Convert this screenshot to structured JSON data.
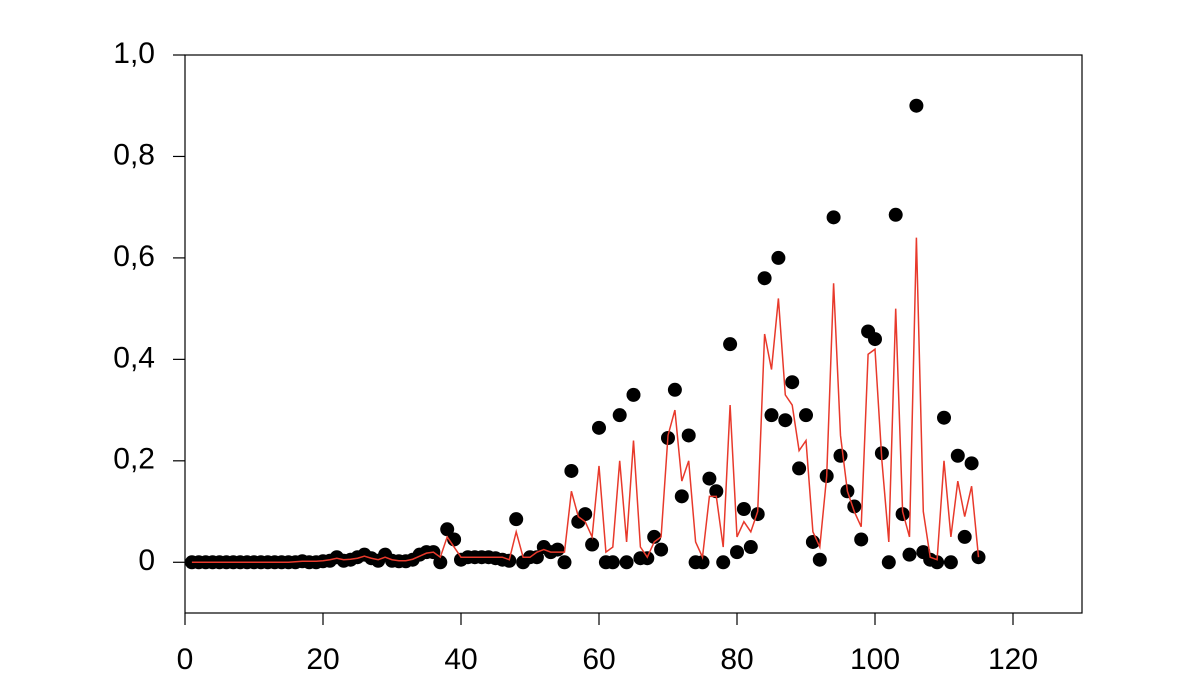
{
  "chart_data": {
    "type": "scatter",
    "x": [
      1,
      2,
      3,
      4,
      5,
      6,
      7,
      8,
      9,
      10,
      11,
      12,
      13,
      14,
      15,
      16,
      17,
      18,
      19,
      20,
      21,
      22,
      23,
      24,
      25,
      26,
      27,
      28,
      29,
      30,
      31,
      32,
      33,
      34,
      35,
      36,
      37,
      38,
      39,
      40,
      41,
      42,
      43,
      44,
      45,
      46,
      47,
      48,
      49,
      50,
      51,
      52,
      53,
      54,
      55,
      56,
      57,
      58,
      59,
      60,
      61,
      62,
      63,
      64,
      65,
      66,
      67,
      68,
      69,
      70,
      71,
      72,
      73,
      74,
      75,
      76,
      77,
      78,
      79,
      80,
      81,
      82,
      83,
      84,
      85,
      86,
      87,
      88,
      89,
      90,
      91,
      92,
      93,
      94,
      95,
      96,
      97,
      98,
      99,
      100,
      101,
      102,
      103,
      104,
      105,
      106,
      107,
      108,
      109,
      110,
      111,
      112,
      113,
      114,
      115
    ],
    "series": [
      {
        "mode": "markers",
        "color": "#000000",
        "values": [
          0,
          0,
          0,
          0,
          0,
          0,
          0,
          0,
          0,
          0,
          0,
          0,
          0,
          0,
          0,
          0,
          0.002,
          0,
          0,
          0.002,
          0.003,
          0.01,
          0.003,
          0.005,
          0.01,
          0.015,
          0.008,
          0.003,
          0.015,
          0.003,
          0.002,
          0.002,
          0.005,
          0.015,
          0.02,
          0.02,
          0,
          0.065,
          0.045,
          0.005,
          0.01,
          0.01,
          0.01,
          0.01,
          0.008,
          0.005,
          0.003,
          0.085,
          0,
          0.01,
          0.01,
          0.03,
          0.02,
          0.025,
          0,
          0.18,
          0.08,
          0.095,
          0.035,
          0.265,
          0,
          0,
          0.29,
          0,
          0.33,
          0.008,
          0.008,
          0.05,
          0.025,
          0.245,
          0.34,
          0.13,
          0.25,
          0,
          0,
          0.165,
          0.14,
          0,
          0.43,
          0.02,
          0.105,
          0.03,
          0.095,
          0.56,
          0.29,
          0.6,
          0.28,
          0.355,
          0.185,
          0.29,
          0.04,
          0.005,
          0.17,
          0.68,
          0.21,
          0.14,
          0.11,
          0.045,
          0.455,
          0.44,
          0.215,
          0,
          0.685,
          0.095,
          0.015,
          0.9,
          0.02,
          0.005,
          0,
          0.285,
          0,
          0.21,
          0.05,
          0.195,
          0.01
        ]
      },
      {
        "mode": "line",
        "color": "#e8392b",
        "values": [
          0,
          0,
          0,
          0,
          0,
          0,
          0,
          0,
          0,
          0,
          0,
          0,
          0,
          0,
          0,
          0.001,
          0.002,
          0.002,
          0.002,
          0.003,
          0.005,
          0.008,
          0.005,
          0.006,
          0.008,
          0.012,
          0.008,
          0.005,
          0.01,
          0.005,
          0.003,
          0.003,
          0.006,
          0.012,
          0.018,
          0.02,
          0.01,
          0.05,
          0.03,
          0.01,
          0.01,
          0.01,
          0.01,
          0.01,
          0.01,
          0.01,
          0.005,
          0.06,
          0.01,
          0.01,
          0.02,
          0.025,
          0.02,
          0.02,
          0.02,
          0.14,
          0.09,
          0.08,
          0.05,
          0.19,
          0.02,
          0.03,
          0.2,
          0.04,
          0.24,
          0.03,
          0.01,
          0.04,
          0.05,
          0.25,
          0.3,
          0.16,
          0.2,
          0.04,
          0.01,
          0.13,
          0.13,
          0.03,
          0.31,
          0.05,
          0.08,
          0.06,
          0.1,
          0.45,
          0.38,
          0.52,
          0.33,
          0.31,
          0.22,
          0.24,
          0.06,
          0.03,
          0.17,
          0.55,
          0.25,
          0.14,
          0.1,
          0.07,
          0.41,
          0.42,
          0.2,
          0.04,
          0.5,
          0.1,
          0.05,
          0.64,
          0.1,
          0.01,
          0.005,
          0.2,
          0.05,
          0.16,
          0.09,
          0.15,
          0.01
        ]
      }
    ],
    "xlim": [
      0,
      130
    ],
    "xticks": [
      0,
      20,
      40,
      60,
      80,
      100,
      120
    ],
    "ylim": [
      -0.1,
      1.0
    ],
    "yticks": [
      0,
      {
        "value": 0.2,
        "label": "0,2"
      },
      {
        "value": 0.4,
        "label": "0,4"
      },
      {
        "value": 0.6,
        "label": "0,6"
      },
      {
        "value": 0.8,
        "label": "0,8"
      },
      {
        "value": 1.0,
        "label": "1,0"
      }
    ]
  }
}
